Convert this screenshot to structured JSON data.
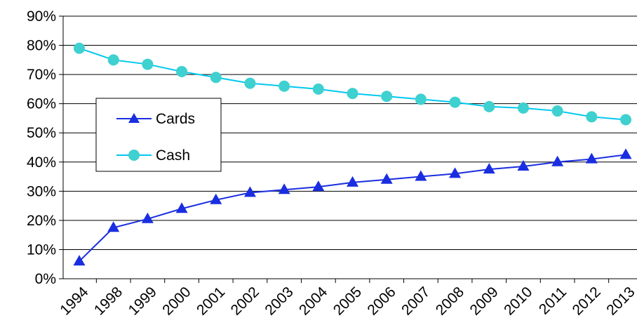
{
  "chart_data": {
    "type": "line",
    "title": "",
    "xlabel": "",
    "ylabel": "",
    "categories": [
      "1994",
      "1998",
      "1999",
      "2000",
      "2001",
      "2002",
      "2003",
      "2004",
      "2005",
      "2006",
      "2007",
      "2008",
      "2009",
      "2010",
      "2011",
      "2012",
      "2013"
    ],
    "ylim": [
      0,
      90
    ],
    "y_ticks": [
      "0%",
      "10%",
      "20%",
      "30%",
      "40%",
      "50%",
      "60%",
      "70%",
      "80%",
      "90%"
    ],
    "grid": "horizontal",
    "legend_position": "left-middle",
    "series": [
      {
        "name": "Cards",
        "marker": "triangle",
        "color": "#1a2ee0",
        "values": [
          6,
          17.5,
          20.5,
          24,
          27,
          29.5,
          30.5,
          31.5,
          33,
          34,
          35,
          36,
          37.5,
          38.5,
          40,
          41,
          42.5
        ]
      },
      {
        "name": "Cash",
        "marker": "circle",
        "color": "#3fd0d0",
        "line_color": "#00c8f0",
        "values": [
          79,
          75,
          73.5,
          71,
          69,
          67,
          66,
          65,
          63.5,
          62.5,
          61.5,
          60.5,
          59,
          58.5,
          57.5,
          55.5,
          54.5
        ]
      }
    ]
  }
}
